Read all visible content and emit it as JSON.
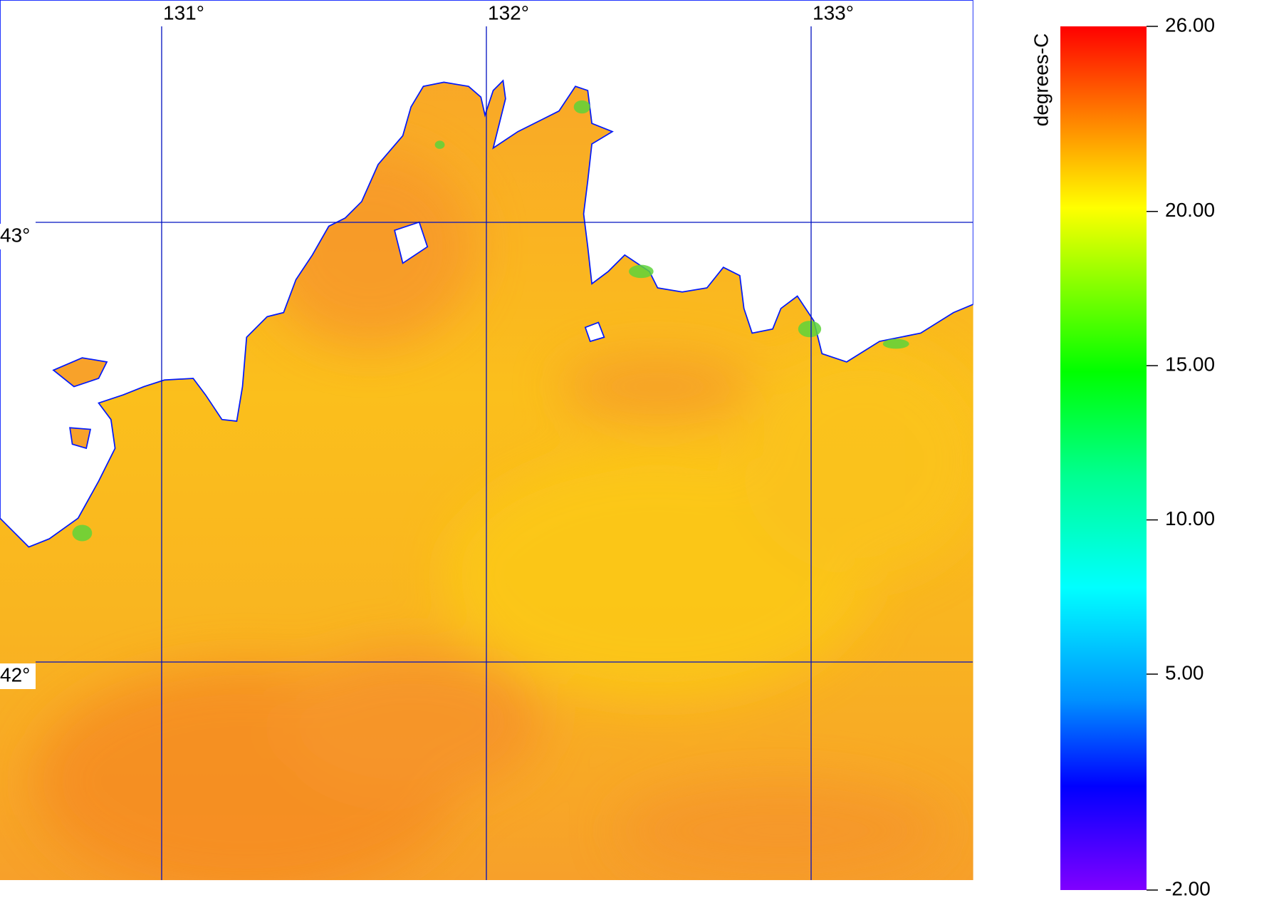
{
  "map": {
    "lon_ticks": [
      {
        "value": 131,
        "label": "131°"
      },
      {
        "value": 132,
        "label": "132°"
      },
      {
        "value": 133,
        "label": "133°"
      }
    ],
    "lat_ticks": [
      {
        "value": 43,
        "label": "43°"
      },
      {
        "value": 42,
        "label": "42°"
      }
    ]
  },
  "colorbar": {
    "title": "degrees-C",
    "lim": [
      -2,
      26
    ],
    "ticks": [
      {
        "value": 26,
        "label": "26.00"
      },
      {
        "value": 20,
        "label": "20.00"
      },
      {
        "value": 15,
        "label": "15.00"
      },
      {
        "value": 10,
        "label": "10.00"
      },
      {
        "value": 5,
        "label": "5.00"
      },
      {
        "value": -2,
        "label": "-2.00"
      }
    ]
  }
}
